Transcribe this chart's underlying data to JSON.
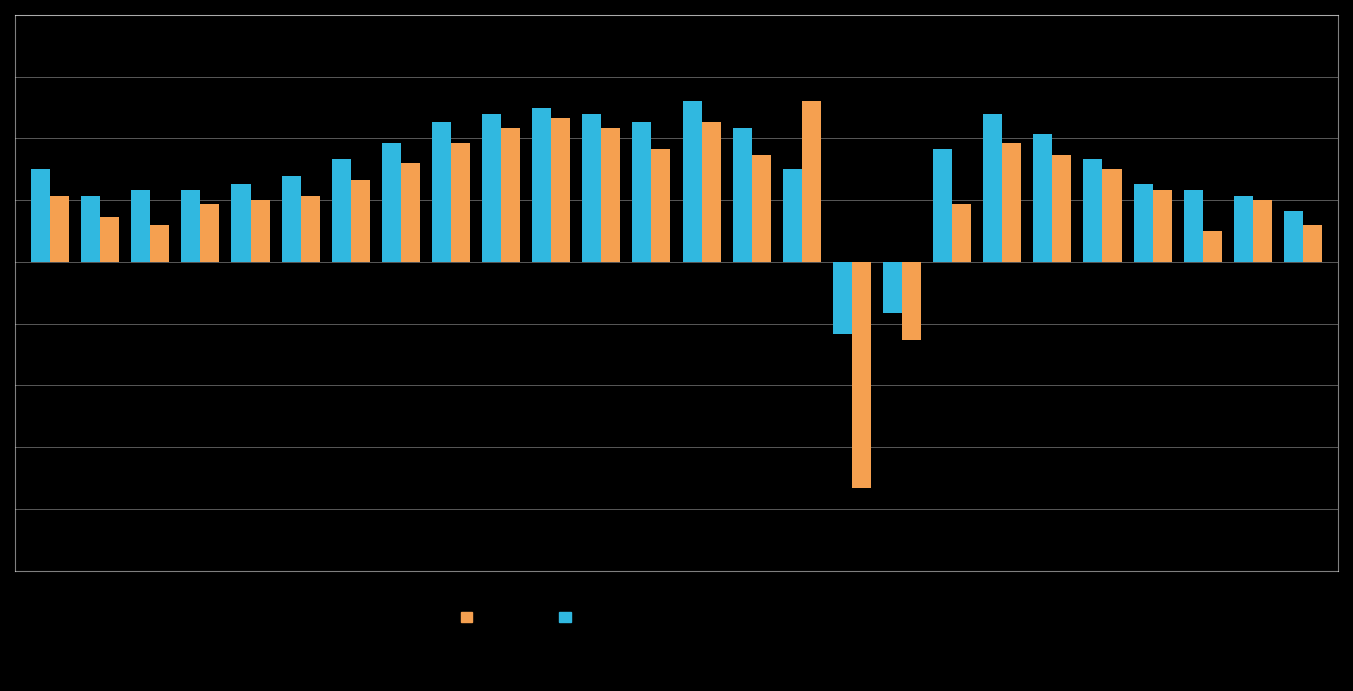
{
  "blue_values": [
    4.5,
    3.2,
    3.5,
    3.5,
    3.8,
    4.2,
    5.0,
    5.8,
    6.8,
    7.2,
    7.5,
    7.2,
    6.8,
    7.8,
    6.5,
    4.5,
    -3.5,
    -2.5,
    5.5,
    7.2,
    6.2,
    5.0,
    3.8,
    3.5,
    3.2,
    2.5
  ],
  "orange_values": [
    3.2,
    2.2,
    1.8,
    2.8,
    3.0,
    3.2,
    4.0,
    4.8,
    5.8,
    6.5,
    7.0,
    6.5,
    5.5,
    6.8,
    5.2,
    7.8,
    -11.0,
    -3.8,
    2.8,
    5.8,
    5.2,
    4.5,
    3.5,
    1.5,
    3.0,
    1.8
  ],
  "orange_color": "#f5a050",
  "blue_color": "#30b8e0",
  "background_color": "#000000",
  "plot_bg_color": "#000000",
  "grid_color": "#ffffff",
  "bar_width": 0.38,
  "ylim": [
    -15,
    12
  ],
  "yticks": [
    -15,
    -12,
    -9,
    -6,
    -3,
    0,
    3,
    6,
    9,
    12
  ],
  "legend_orange_label": "",
  "legend_blue_label": "",
  "figsize": [
    13.53,
    6.91
  ]
}
